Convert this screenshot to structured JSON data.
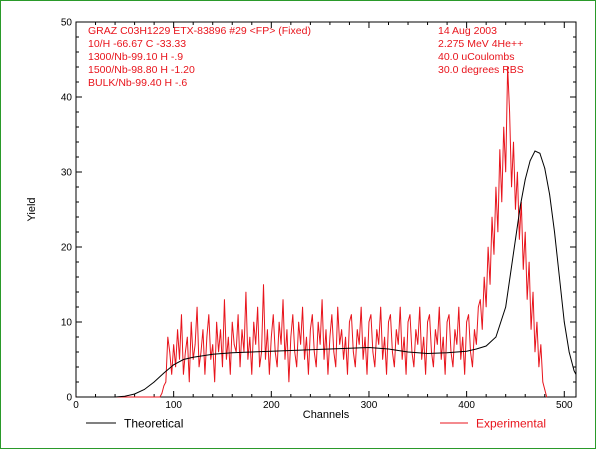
{
  "chart_data": {
    "type": "line",
    "xlabel": "Channels",
    "ylabel": "Yield",
    "xlim": [
      0,
      512
    ],
    "ylim": [
      0,
      50
    ],
    "xticks": [
      0,
      100,
      200,
      300,
      400,
      500
    ],
    "yticks": [
      0,
      10,
      20,
      30,
      40,
      50
    ],
    "grid": false,
    "annotations_left": [
      "GRAZ C03H1229 ETX-83896 #29 <FP> (Fixed)",
      "10/H -66.67 C -33.33",
      "1300/Nb-99.10 H -.9",
      "1500/Nb-98.80 H -1.20",
      "BULK/Nb-99.40 H -.6"
    ],
    "annotations_right": [
      "14 Aug 2003",
      "2.275 MeV 4He++",
      "40.0 uCoulombs",
      "30.0 degrees RBS"
    ],
    "series": [
      {
        "name": "Theoretical",
        "color": "#000000",
        "x": [
          0,
          20,
          40,
          50,
          60,
          70,
          80,
          90,
          100,
          110,
          120,
          140,
          160,
          180,
          200,
          220,
          240,
          260,
          280,
          300,
          320,
          340,
          360,
          380,
          400,
          410,
          420,
          430,
          440,
          445,
          450,
          455,
          460,
          465,
          470,
          475,
          480,
          485,
          490,
          495,
          500,
          505,
          510,
          512
        ],
        "y": [
          0,
          0,
          0,
          0.1,
          0.4,
          1.0,
          2.0,
          3.2,
          4.3,
          5.0,
          5.3,
          5.7,
          5.9,
          6.0,
          6.1,
          6.2,
          6.3,
          6.4,
          6.5,
          6.6,
          6.4,
          6.0,
          5.8,
          5.9,
          6.1,
          6.4,
          6.8,
          8.0,
          12.0,
          16.5,
          21.0,
          25.5,
          29.0,
          31.5,
          32.8,
          32.5,
          30.5,
          27.0,
          22.0,
          16.0,
          10.0,
          6.0,
          3.5,
          3.0
        ]
      },
      {
        "name": "Experimental",
        "color": "#e8141c",
        "x_start": 0,
        "x_step": 2,
        "y": [
          0,
          0,
          0,
          0,
          0,
          0,
          0,
          0,
          0,
          0,
          0,
          0,
          0,
          0,
          0,
          0,
          0,
          0,
          0,
          0,
          0,
          0,
          0,
          0,
          0,
          0,
          0,
          0,
          0,
          0,
          0,
          0,
          0,
          0,
          0,
          0,
          0,
          0,
          0,
          0,
          0,
          0,
          0,
          0,
          0.5,
          1.5,
          2,
          8,
          6,
          3,
          7,
          4,
          9,
          5,
          11,
          3,
          6,
          8,
          2,
          10,
          5,
          7,
          12,
          4,
          6,
          9,
          3,
          8,
          11,
          5,
          7,
          2,
          10,
          6,
          9,
          4,
          13,
          5,
          8,
          3,
          10,
          7,
          6,
          11,
          4,
          9,
          6,
          14,
          5,
          8,
          3,
          10,
          7,
          12,
          4,
          6,
          15,
          5,
          9,
          3,
          8,
          11,
          6,
          4,
          10,
          7,
          13,
          5,
          9,
          2,
          8,
          11,
          6,
          4,
          10,
          7,
          12,
          5,
          8,
          3,
          9,
          11,
          6,
          4,
          10,
          7,
          13,
          5,
          9,
          3,
          8,
          11,
          6,
          4,
          12,
          7,
          9,
          5,
          8,
          3,
          10,
          11,
          6,
          4,
          9,
          7,
          12,
          5,
          8,
          3,
          10,
          11,
          6,
          4,
          9,
          7,
          12,
          5,
          8,
          3,
          10,
          11,
          6,
          4,
          9,
          7,
          12,
          5,
          8,
          3,
          10,
          11,
          6,
          4,
          9,
          7,
          12,
          5,
          8,
          3,
          10,
          11,
          6,
          4,
          9,
          7,
          12,
          5,
          8,
          3,
          10,
          11,
          6,
          4,
          9,
          7,
          12,
          5,
          8,
          3,
          10,
          11,
          6,
          4,
          9,
          7,
          12,
          13,
          9,
          16,
          12,
          20,
          15,
          24,
          19,
          28,
          22,
          33,
          26,
          36,
          30,
          44,
          38,
          28,
          34,
          25,
          30,
          21,
          26,
          17,
          22,
          13,
          18,
          9,
          14,
          6,
          10,
          4,
          7,
          2,
          1,
          0
        ]
      }
    ]
  }
}
